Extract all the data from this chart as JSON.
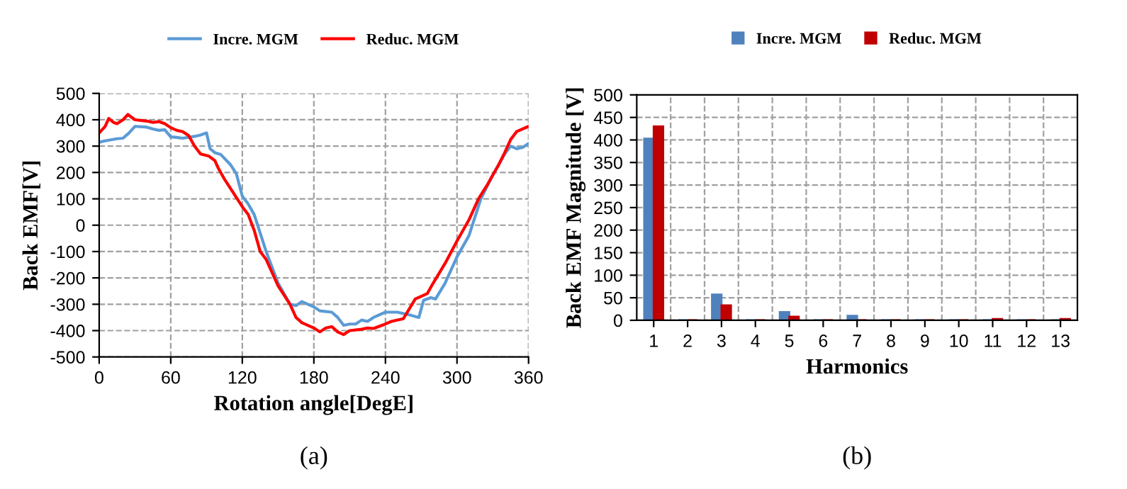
{
  "chart_data": [
    {
      "type": "line",
      "xlabel": "Rotation angle[DegE]",
      "ylabel": "Back EMF[V]",
      "xlim": [
        0,
        360
      ],
      "xticks": [
        0,
        60,
        120,
        180,
        240,
        300,
        360
      ],
      "ylim": [
        -500,
        500
      ],
      "yticks": [
        -500,
        -400,
        -300,
        -200,
        -100,
        0,
        100,
        200,
        300,
        400,
        500
      ],
      "grid": true,
      "legend": "top",
      "line_style": "solid",
      "marker": "none",
      "annotations": [
        "(a)"
      ],
      "series": [
        {
          "name": "Incre. MGM",
          "color": "#5b9bd5",
          "x": [
            0,
            5,
            15,
            20,
            25,
            30,
            40,
            45,
            50,
            55,
            60,
            65,
            70,
            80,
            85,
            90,
            93,
            97,
            102,
            110,
            115,
            120,
            125,
            130,
            135,
            140,
            150,
            160,
            165,
            170,
            180,
            185,
            195,
            200,
            205,
            210,
            215,
            220,
            225,
            230,
            240,
            250,
            260,
            268,
            272,
            278,
            282,
            290,
            300,
            310,
            315,
            320,
            330,
            340,
            345,
            350,
            355,
            360
          ],
          "values": [
            315,
            320,
            328,
            330,
            350,
            375,
            372,
            365,
            360,
            362,
            335,
            333,
            330,
            337,
            342,
            350,
            290,
            275,
            268,
            230,
            195,
            110,
            80,
            40,
            -30,
            -100,
            -220,
            -300,
            -305,
            -290,
            -310,
            -325,
            -330,
            -350,
            -380,
            -375,
            -375,
            -360,
            -365,
            -350,
            -330,
            -330,
            -340,
            -350,
            -285,
            -275,
            -280,
            -220,
            -120,
            -40,
            30,
            100,
            190,
            270,
            300,
            290,
            295,
            310
          ]
        },
        {
          "name": "Reduc. MGM",
          "color": "#ff0000",
          "x": [
            0,
            5,
            8,
            12,
            15,
            20,
            24,
            30,
            40,
            45,
            50,
            55,
            60,
            65,
            70,
            75,
            80,
            85,
            92,
            97,
            100,
            105,
            110,
            120,
            125,
            130,
            135,
            140,
            150,
            160,
            165,
            170,
            180,
            185,
            190,
            195,
            200,
            205,
            210,
            220,
            225,
            230,
            240,
            245,
            255,
            265,
            270,
            275,
            280,
            290,
            300,
            310,
            318,
            325,
            335,
            340,
            345,
            350,
            360
          ],
          "values": [
            350,
            375,
            405,
            390,
            385,
            400,
            420,
            400,
            395,
            390,
            393,
            385,
            370,
            360,
            355,
            340,
            300,
            270,
            262,
            245,
            215,
            175,
            140,
            70,
            40,
            -20,
            -100,
            -130,
            -230,
            -300,
            -350,
            -370,
            -390,
            -405,
            -390,
            -385,
            -405,
            -415,
            -400,
            -395,
            -390,
            -392,
            -375,
            -365,
            -355,
            -280,
            -270,
            -260,
            -220,
            -145,
            -60,
            20,
            100,
            150,
            230,
            275,
            325,
            355,
            375
          ]
        }
      ]
    },
    {
      "type": "bar",
      "xlabel": "Harmonics",
      "ylabel": "Back EMF Magnitude [V]",
      "categories": [
        "1",
        "2",
        "3",
        "4",
        "5",
        "6",
        "7",
        "8",
        "9",
        "10",
        "11",
        "12",
        "13"
      ],
      "ylim": [
        0,
        500
      ],
      "yticks": [
        0,
        50,
        100,
        150,
        200,
        250,
        300,
        350,
        400,
        450,
        500
      ],
      "grid": true,
      "legend": "top",
      "annotations": [
        "(b)"
      ],
      "series": [
        {
          "name": "Incre. MGM",
          "color": "#4f81bd",
          "values": [
            403,
            0,
            57,
            0,
            18,
            0,
            10,
            0,
            0,
            0,
            0,
            0,
            0
          ]
        },
        {
          "name": "Reduc. MGM",
          "color": "#c00000",
          "values": [
            430,
            0,
            33,
            0,
            8,
            0,
            0,
            0,
            0,
            0,
            3,
            0,
            3
          ]
        }
      ]
    }
  ]
}
